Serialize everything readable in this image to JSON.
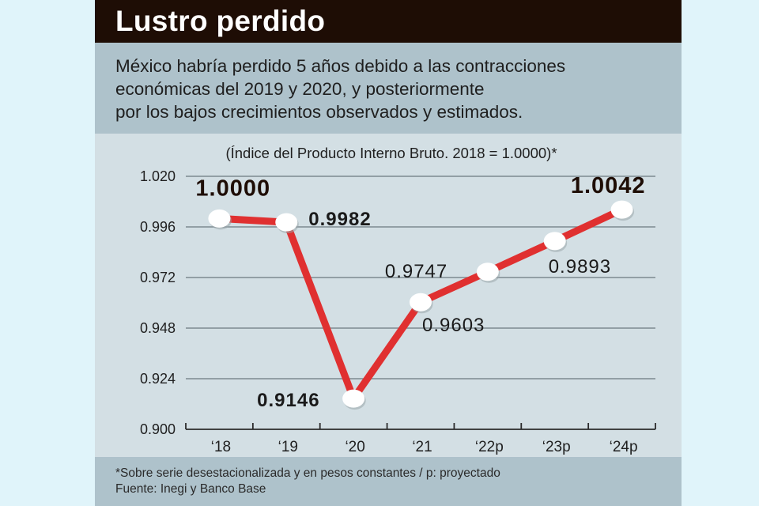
{
  "header": {
    "title": "Lustro perdido"
  },
  "description": {
    "lines": [
      "México habría perdido 5 años debido a las contracciones",
      "económicas del 2019 y 2020, y posteriormente",
      "por los bajos crecimientos observados y estimados."
    ]
  },
  "footer": {
    "note": "*Sobre serie desestacionalizada y en pesos constantes / p: proyectado",
    "source": "Fuente: Inegi y Banco Base"
  },
  "colors": {
    "header_bg": "#1e0d05",
    "line": "#e03030",
    "marker": "#ffffff",
    "gridline": "#7d8a90"
  },
  "chart_data": {
    "type": "line",
    "title": "Lustro perdido",
    "subtitle": "(Índice del Producto Interno Bruto. 2018 = 1.0000)*",
    "xlabel": "",
    "ylabel": "",
    "categories": [
      "‘18",
      "‘19",
      "‘20",
      "‘21",
      "‘22p",
      "‘23p",
      "‘24p"
    ],
    "series": [
      {
        "name": "Índice PIB",
        "values": [
          1.0,
          0.9982,
          0.9146,
          0.9603,
          0.9747,
          0.9893,
          1.0042
        ],
        "labels": [
          "1.0000",
          "0.9982",
          "0.9146",
          "0.9603",
          "0.9747",
          "0.9893",
          "1.0042"
        ]
      }
    ],
    "ylim": [
      0.9,
      1.02
    ],
    "yticks": [
      "1.020",
      "0.996",
      "0.972",
      "0.948",
      "0.924",
      "0.900"
    ],
    "ytick_values": [
      1.02,
      0.996,
      0.972,
      0.948,
      0.924,
      0.9
    ],
    "grid": true,
    "legend": "none"
  }
}
